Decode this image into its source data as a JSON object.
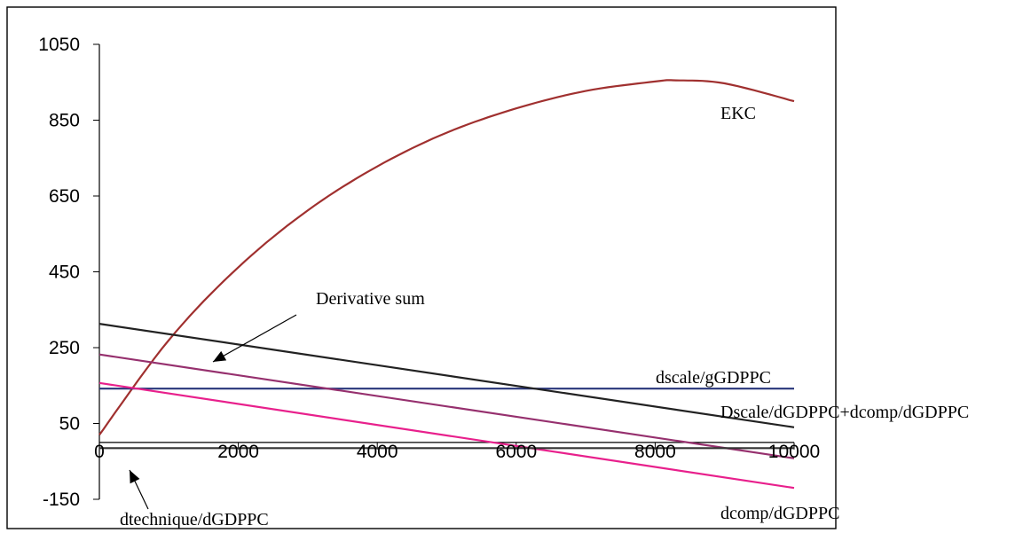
{
  "chart_data": {
    "type": "line",
    "title": "",
    "xlabel": "",
    "ylabel": "",
    "xlim": [
      0,
      10000
    ],
    "ylim": [
      -150,
      1050
    ],
    "x_ticks": [
      0,
      2000,
      4000,
      6000,
      8000,
      10000
    ],
    "y_ticks": [
      -150,
      50,
      250,
      450,
      650,
      850,
      1050
    ],
    "x_tick_labels": [
      "0",
      "2000",
      "4000",
      "6000",
      "8000",
      "10000"
    ],
    "y_tick_labels": [
      "-150",
      "50",
      "250",
      "450",
      "650",
      "850",
      "1050"
    ],
    "grid": false,
    "legend": "none",
    "series": [
      {
        "name": "EKC",
        "color": "#a0302f",
        "x": [
          0,
          1000,
          2000,
          3000,
          4000,
          5000,
          6000,
          7000,
          8000,
          8300,
          9000,
          10000
        ],
        "y": [
          20,
          270,
          462,
          612,
          728,
          817,
          881,
          927,
          952,
          955,
          947,
          900
        ]
      },
      {
        "name": "dscale/gGDPPC",
        "color": "#28357a",
        "x": [
          0,
          10000
        ],
        "y": [
          142,
          142
        ]
      },
      {
        "name": "Dscale/dGDPPC+dcomp/dGDPPC",
        "color": "#222222",
        "x": [
          0,
          10000
        ],
        "y": [
          313,
          40
        ]
      },
      {
        "name": "Derivative sum",
        "color": "#96306e",
        "x": [
          0,
          10000
        ],
        "y": [
          232,
          -42
        ]
      },
      {
        "name": "dcomp/dGDPPC",
        "color": "#e8208c",
        "x": [
          0,
          10000
        ],
        "y": [
          157,
          -120
        ]
      },
      {
        "name": "dtechnique/dGDPPC",
        "color": "#333333",
        "x": [
          0,
          10000
        ],
        "y": [
          -15,
          -15
        ]
      }
    ],
    "annotations": [
      {
        "text": "EKC"
      },
      {
        "text": "Derivative sum"
      },
      {
        "text": "dscale/gGDPPC"
      },
      {
        "text": "Dscale/dGDPPC+dcomp/dGDPPC"
      },
      {
        "text": "dcomp/dGDPPC"
      },
      {
        "text": "dtechnique/dGDPPC"
      }
    ]
  }
}
